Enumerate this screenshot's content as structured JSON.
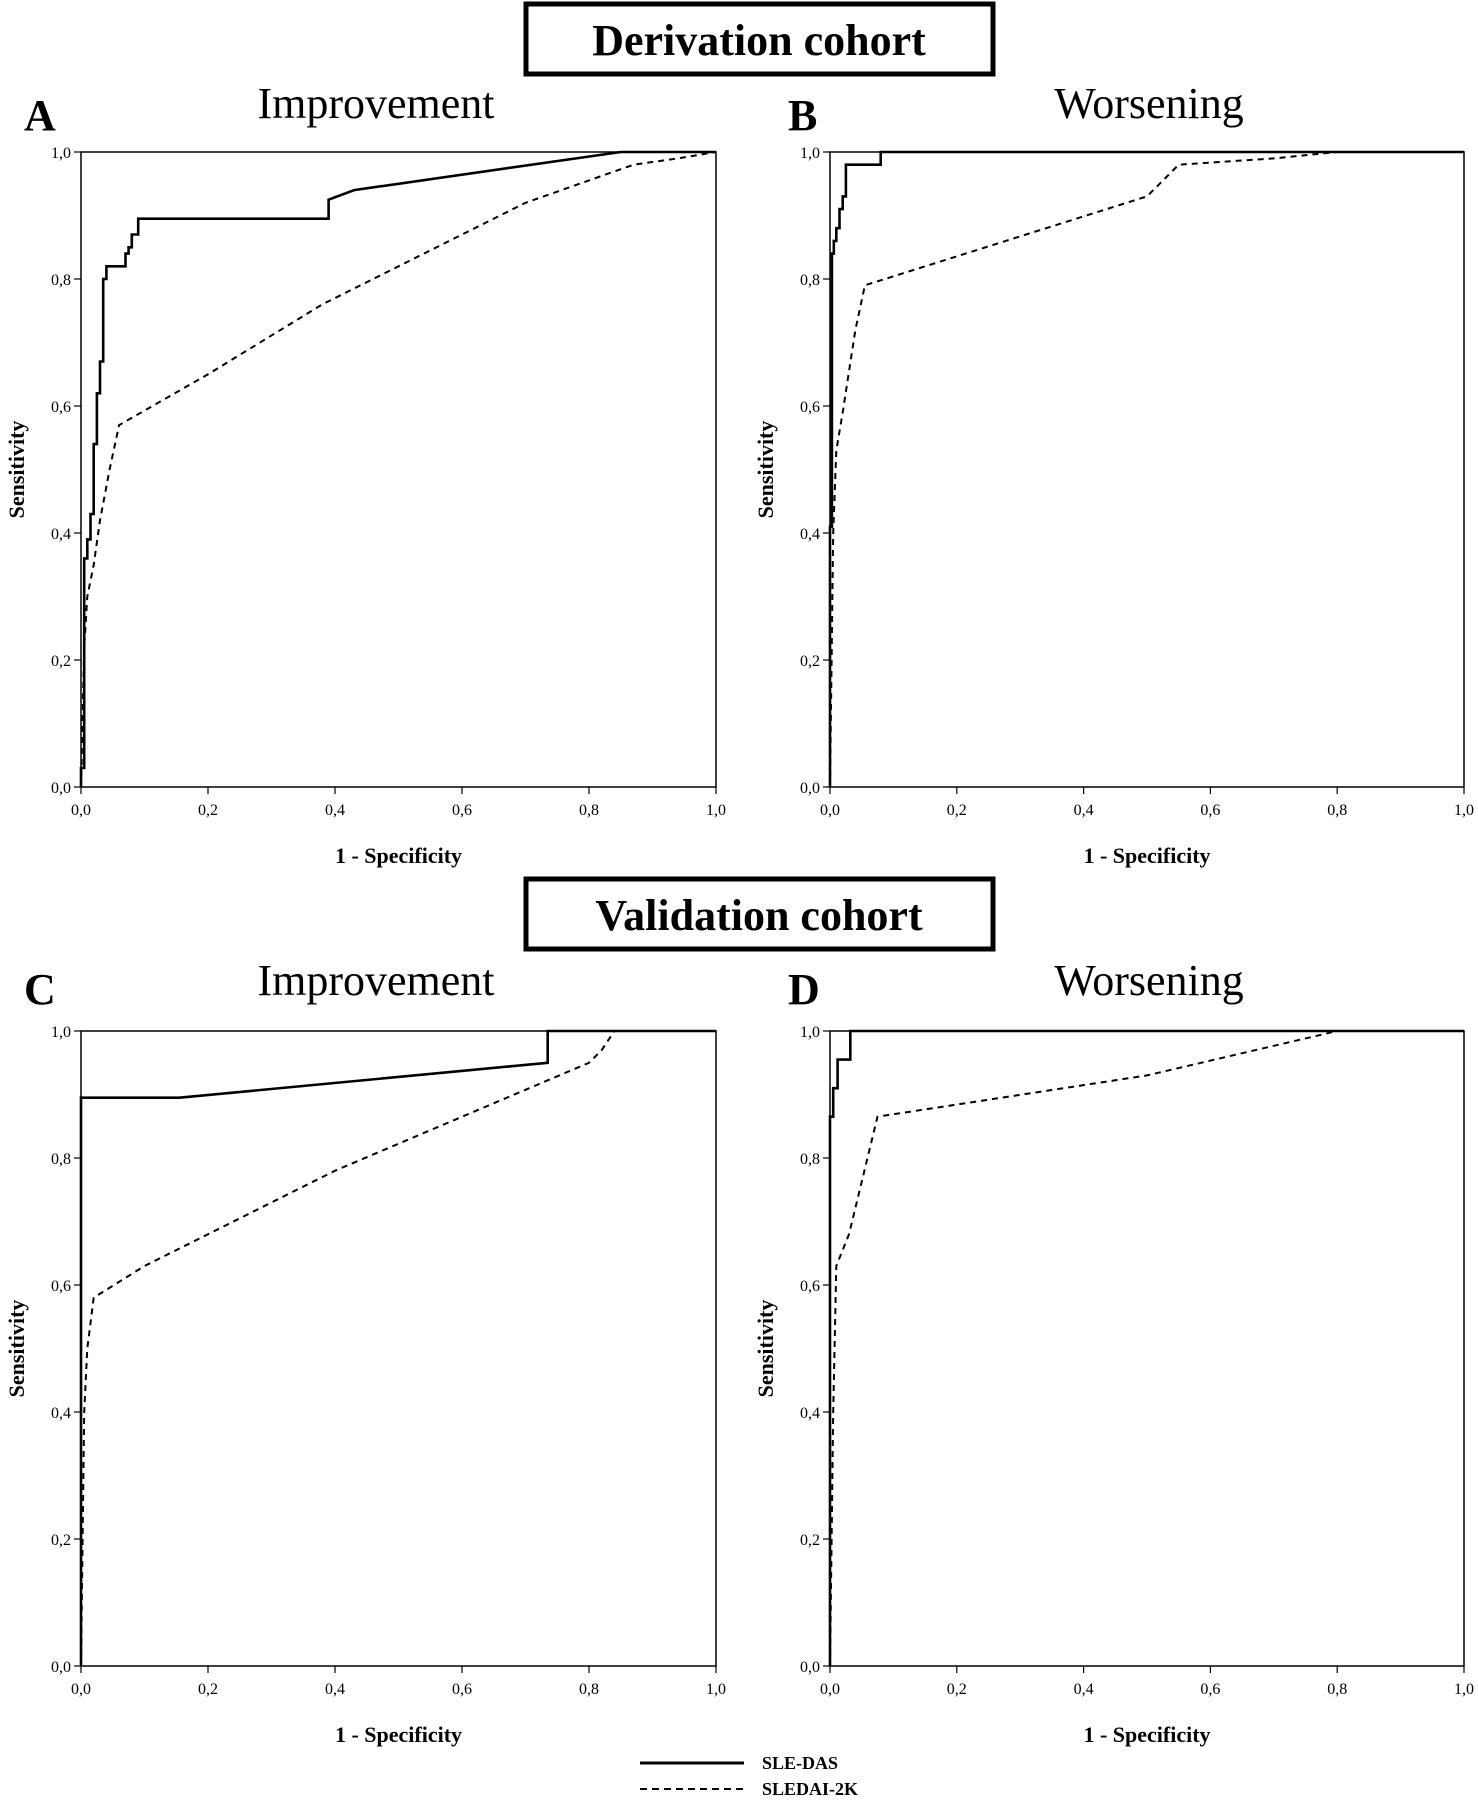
{
  "cohorts": [
    {
      "title": "Derivation cohort"
    },
    {
      "title": "Validation cohort"
    }
  ],
  "legend": {
    "items": [
      {
        "label": "SLE-DAS",
        "style": "solid"
      },
      {
        "label": "SLEDAI-2K",
        "style": "dashed"
      }
    ]
  },
  "chart_data": [
    {
      "type": "line",
      "panel": "A",
      "cohort": "Derivation cohort",
      "title": "Improvement",
      "xlabel": "1 - Specificity",
      "ylabel": "Sensitivity",
      "xlim": [
        0,
        1
      ],
      "ylim": [
        0,
        1
      ],
      "ticks": [
        "0,0",
        "0,2",
        "0,4",
        "0,6",
        "0,8",
        "1,0"
      ],
      "series": [
        {
          "name": "SLE-DAS",
          "style": "solid",
          "points": [
            [
              0,
              0
            ],
            [
              0,
              0.03
            ],
            [
              0.005,
              0.03
            ],
            [
              0.005,
              0.36
            ],
            [
              0.01,
              0.36
            ],
            [
              0.01,
              0.39
            ],
            [
              0.015,
              0.39
            ],
            [
              0.015,
              0.43
            ],
            [
              0.02,
              0.43
            ],
            [
              0.02,
              0.54
            ],
            [
              0.025,
              0.54
            ],
            [
              0.025,
              0.62
            ],
            [
              0.03,
              0.62
            ],
            [
              0.03,
              0.67
            ],
            [
              0.035,
              0.67
            ],
            [
              0.035,
              0.8
            ],
            [
              0.04,
              0.8
            ],
            [
              0.04,
              0.82
            ],
            [
              0.07,
              0.82
            ],
            [
              0.07,
              0.84
            ],
            [
              0.075,
              0.84
            ],
            [
              0.075,
              0.85
            ],
            [
              0.08,
              0.85
            ],
            [
              0.08,
              0.87
            ],
            [
              0.09,
              0.87
            ],
            [
              0.09,
              0.895
            ],
            [
              0.39,
              0.895
            ],
            [
              0.39,
              0.925
            ],
            [
              0.43,
              0.94
            ],
            [
              0.85,
              1.0
            ],
            [
              1.0,
              1.0
            ]
          ]
        },
        {
          "name": "SLEDAI-2K",
          "style": "dashed",
          "points": [
            [
              0,
              0
            ],
            [
              0.005,
              0.22
            ],
            [
              0.01,
              0.3
            ],
            [
              0.02,
              0.35
            ],
            [
              0.03,
              0.42
            ],
            [
              0.045,
              0.5
            ],
            [
              0.06,
              0.57
            ],
            [
              0.2,
              0.65
            ],
            [
              0.38,
              0.76
            ],
            [
              0.5,
              0.82
            ],
            [
              0.7,
              0.92
            ],
            [
              0.87,
              0.98
            ],
            [
              0.94,
              0.99
            ],
            [
              1.0,
              1.0
            ]
          ]
        }
      ]
    },
    {
      "type": "line",
      "panel": "B",
      "cohort": "Derivation cohort",
      "title": "Worsening",
      "xlabel": "1 - Specificity",
      "ylabel": "Sensitivity",
      "xlim": [
        0,
        1
      ],
      "ylim": [
        0,
        1
      ],
      "ticks": [
        "0,0",
        "0,2",
        "0,4",
        "0,6",
        "0,8",
        "1,0"
      ],
      "series": [
        {
          "name": "SLE-DAS",
          "style": "solid",
          "points": [
            [
              0,
              0
            ],
            [
              0,
              0.41
            ],
            [
              0.003,
              0.41
            ],
            [
              0.003,
              0.84
            ],
            [
              0.006,
              0.84
            ],
            [
              0.006,
              0.86
            ],
            [
              0.01,
              0.86
            ],
            [
              0.01,
              0.88
            ],
            [
              0.015,
              0.88
            ],
            [
              0.015,
              0.91
            ],
            [
              0.02,
              0.91
            ],
            [
              0.02,
              0.93
            ],
            [
              0.025,
              0.93
            ],
            [
              0.025,
              0.98
            ],
            [
              0.08,
              0.98
            ],
            [
              0.08,
              1.0
            ],
            [
              1.0,
              1.0
            ]
          ]
        },
        {
          "name": "SLEDAI-2K",
          "style": "dashed",
          "points": [
            [
              0,
              0
            ],
            [
              0.005,
              0.4
            ],
            [
              0.01,
              0.53
            ],
            [
              0.02,
              0.59
            ],
            [
              0.04,
              0.72
            ],
            [
              0.055,
              0.79
            ],
            [
              0.5,
              0.93
            ],
            [
              0.55,
              0.98
            ],
            [
              0.7,
              0.99
            ],
            [
              0.8,
              1.0
            ],
            [
              1.0,
              1.0
            ]
          ]
        }
      ]
    },
    {
      "type": "line",
      "panel": "C",
      "cohort": "Validation cohort",
      "title": "Improvement",
      "xlabel": "1 - Specificity",
      "ylabel": "Sensitivity",
      "xlim": [
        0,
        1
      ],
      "ylim": [
        0,
        1
      ],
      "ticks": [
        "0,0",
        "0,2",
        "0,4",
        "0,6",
        "0,8",
        "1,0"
      ],
      "series": [
        {
          "name": "SLE-DAS",
          "style": "solid",
          "points": [
            [
              0,
              0
            ],
            [
              0,
              0.895
            ],
            [
              0.155,
              0.895
            ],
            [
              0.735,
              0.95
            ],
            [
              0.735,
              1.0
            ],
            [
              1.0,
              1.0
            ]
          ]
        },
        {
          "name": "SLEDAI-2K",
          "style": "dashed",
          "points": [
            [
              0,
              0
            ],
            [
              0.005,
              0.4
            ],
            [
              0.01,
              0.5
            ],
            [
              0.02,
              0.58
            ],
            [
              0.1,
              0.63
            ],
            [
              0.4,
              0.78
            ],
            [
              0.8,
              0.95
            ],
            [
              0.82,
              0.97
            ],
            [
              0.84,
              1.0
            ],
            [
              1.0,
              1.0
            ]
          ]
        }
      ]
    },
    {
      "type": "line",
      "panel": "D",
      "cohort": "Validation cohort",
      "title": "Worsening",
      "xlabel": "1 - Specificity",
      "ylabel": "Sensitivity",
      "xlim": [
        0,
        1
      ],
      "ylim": [
        0,
        1
      ],
      "ticks": [
        "0,0",
        "0,2",
        "0,4",
        "0,6",
        "0,8",
        "1,0"
      ],
      "series": [
        {
          "name": "SLE-DAS",
          "style": "solid",
          "points": [
            [
              0,
              0
            ],
            [
              0,
              0.865
            ],
            [
              0.005,
              0.865
            ],
            [
              0.005,
              0.91
            ],
            [
              0.012,
              0.91
            ],
            [
              0.012,
              0.955
            ],
            [
              0.032,
              0.955
            ],
            [
              0.032,
              1.0
            ],
            [
              1.0,
              1.0
            ]
          ]
        },
        {
          "name": "SLEDAI-2K",
          "style": "dashed",
          "points": [
            [
              0,
              0
            ],
            [
              0.005,
              0.4
            ],
            [
              0.01,
              0.63
            ],
            [
              0.03,
              0.68
            ],
            [
              0.075,
              0.865
            ],
            [
              0.5,
              0.93
            ],
            [
              0.8,
              1.0
            ],
            [
              1.0,
              1.0
            ]
          ]
        }
      ]
    }
  ]
}
